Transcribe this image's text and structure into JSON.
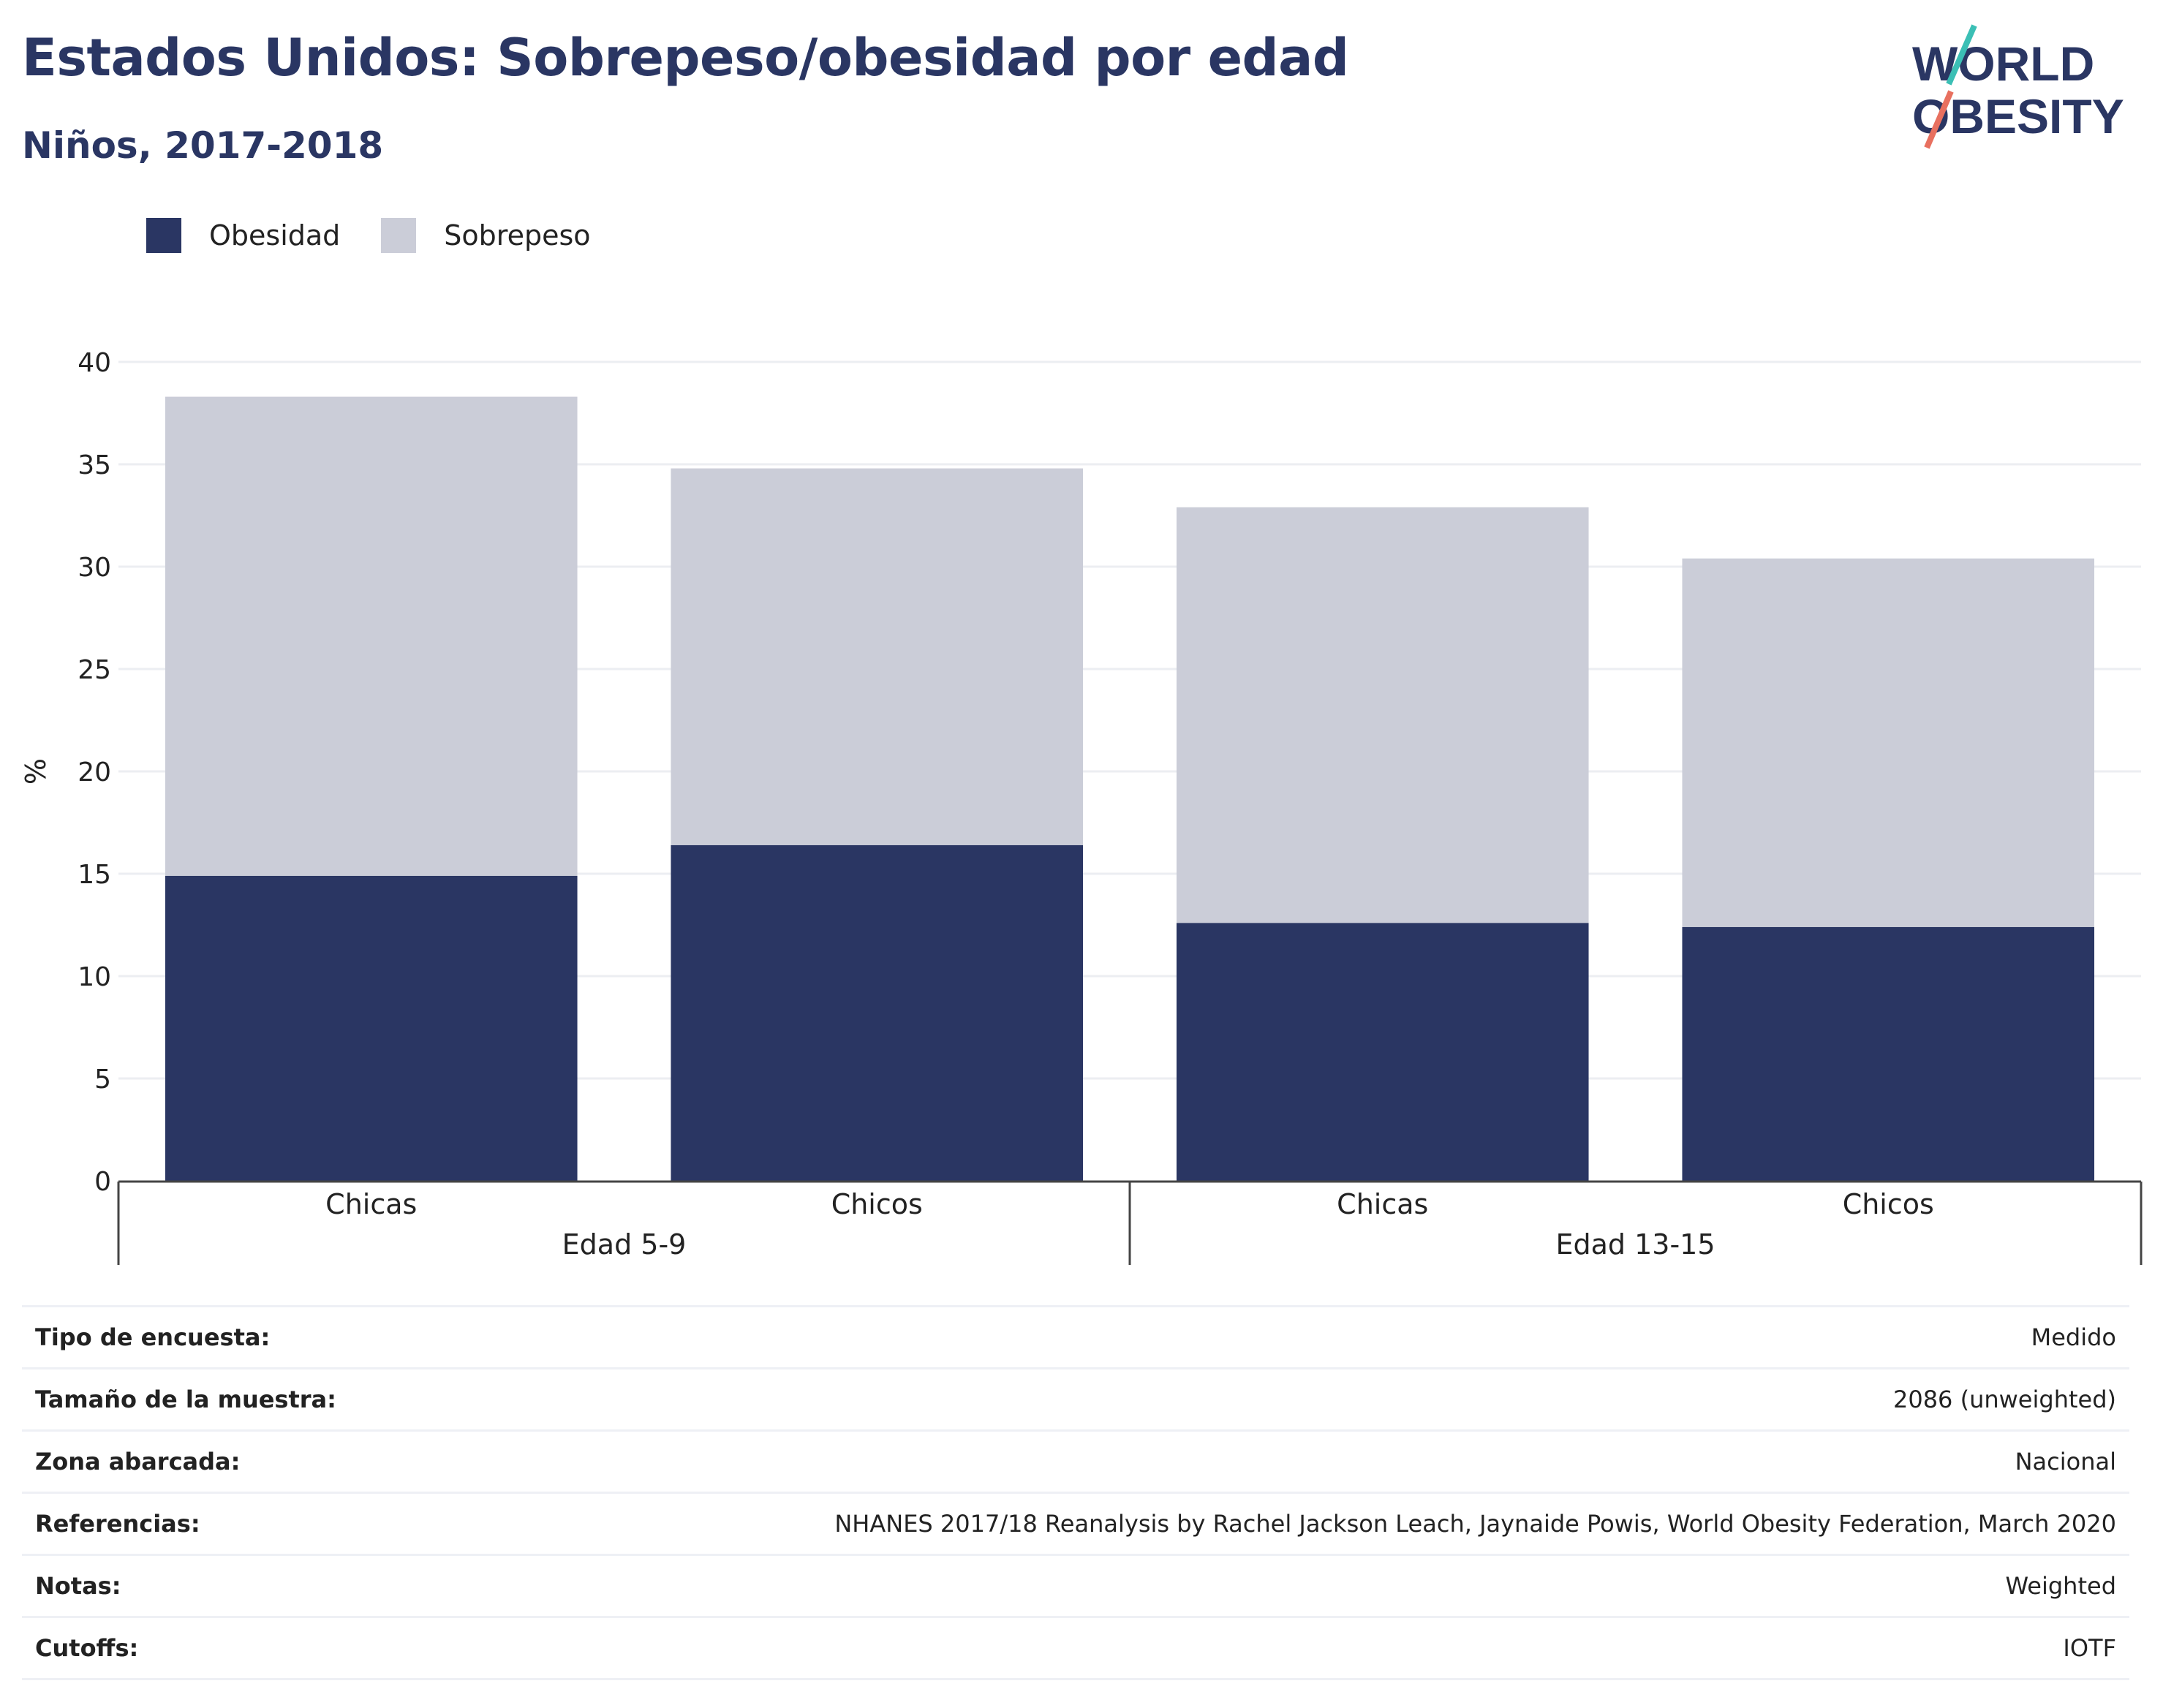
{
  "header": {
    "title": "Estados Unidos: Sobrepeso/obesidad por edad",
    "subtitle": "Niños, 2017-2018"
  },
  "logo": {
    "line1": "WORLD",
    "line2": "OBESITY",
    "colors": [
      "#2a3663",
      "#3bbfb5",
      "#e8705f"
    ]
  },
  "legend": [
    {
      "label": "Obesidad",
      "color": "#2a3663"
    },
    {
      "label": "Sobrepeso",
      "color": "#cbcdd8"
    }
  ],
  "chart_data": {
    "type": "bar",
    "stacked": true,
    "ylabel": "%",
    "ylim": [
      0,
      40
    ],
    "yticks": [
      0,
      5,
      10,
      15,
      20,
      25,
      30,
      35,
      40
    ],
    "categories": [
      "Chicas",
      "Chicos",
      "Chicas",
      "Chicos"
    ],
    "groups": [
      {
        "label": "Edad 5-9",
        "categories": [
          0,
          1
        ]
      },
      {
        "label": "Edad 13-15",
        "categories": [
          2,
          3
        ]
      }
    ],
    "series": [
      {
        "name": "Obesidad",
        "color": "#2a3663",
        "values": [
          14.9,
          16.4,
          12.6,
          12.4
        ]
      },
      {
        "name": "Sobrepeso",
        "color": "#cbcdd8",
        "values": [
          23.4,
          18.4,
          20.3,
          18.0
        ]
      }
    ],
    "grid": true,
    "legend_position": "top-left"
  },
  "info": [
    {
      "key": "Tipo de encuesta:",
      "value": "Medido"
    },
    {
      "key": "Tamaño de la muestra:",
      "value": "2086 (unweighted)"
    },
    {
      "key": "Zona abarcada:",
      "value": "Nacional"
    },
    {
      "key": "Referencias:",
      "value": "NHANES 2017/18 Reanalysis by Rachel Jackson Leach, Jaynaide Powis, World Obesity Federation, March 2020"
    },
    {
      "key": "Notas:",
      "value": "Weighted"
    },
    {
      "key": "Cutoffs:",
      "value": "IOTF"
    }
  ]
}
